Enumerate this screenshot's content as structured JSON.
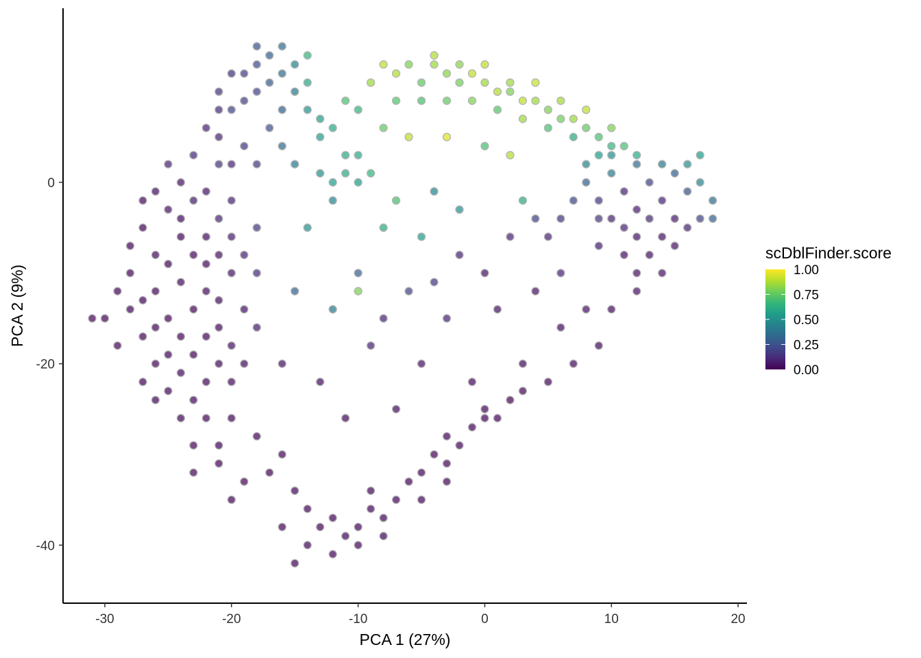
{
  "chart_data": {
    "type": "scatter",
    "xlabel": "PCA 1 (27%)",
    "ylabel": "PCA 2 (9%)",
    "xlim": [
      -33.3,
      20.7
    ],
    "ylim": [
      -46.4,
      19.2
    ],
    "xticks": [
      -30,
      -20,
      -10,
      0,
      10,
      20
    ],
    "yticks": [
      0,
      -20,
      -40
    ],
    "grid": false,
    "colormap": "viridis",
    "point_stroke": "#b3b3b3",
    "legend": {
      "title": "scDblFinder.score",
      "placement": "right",
      "range": [
        0,
        1
      ],
      "ticks": [
        "1.00",
        "0.75",
        "0.50",
        "0.25",
        "0.00"
      ],
      "tick_values": [
        1,
        0.75,
        0.5,
        0.25,
        0
      ]
    },
    "points": [
      [
        -27,
        -5,
        0.02
      ],
      [
        -26,
        -8,
        0.03
      ],
      [
        -25,
        -3,
        0.05
      ],
      [
        -24,
        -6,
        0.02
      ],
      [
        -23,
        -2,
        0.08
      ],
      [
        -22,
        -9,
        0.03
      ],
      [
        -21,
        -4,
        0.1
      ],
      [
        -26,
        -12,
        0.02
      ],
      [
        -25,
        -15,
        0.02
      ],
      [
        -24,
        -11,
        0.03
      ],
      [
        -23,
        -14,
        0.02
      ],
      [
        -22,
        -17,
        0.02
      ],
      [
        -21,
        -13,
        0.04
      ],
      [
        -27,
        -17,
        0.02
      ],
      [
        -26,
        -20,
        0.02
      ],
      [
        -25,
        -19,
        0.02
      ],
      [
        -24,
        -21,
        0.03
      ],
      [
        -23,
        -19,
        0.02
      ],
      [
        -22,
        -22,
        0.02
      ],
      [
        -21,
        -20,
        0.03
      ],
      [
        -28,
        -10,
        0.02
      ],
      [
        -28,
        -14,
        0.02
      ],
      [
        -29,
        -18,
        0.02
      ],
      [
        -27,
        -22,
        0.02
      ],
      [
        -25,
        -23,
        0.02
      ],
      [
        -23,
        -24,
        0.02
      ],
      [
        -20,
        -18,
        0.05
      ],
      [
        -20,
        -10,
        0.06
      ],
      [
        -20,
        -6,
        0.08
      ],
      [
        -22,
        -1,
        0.06
      ],
      [
        -24,
        0,
        0.05
      ],
      [
        -25,
        2,
        0.1
      ],
      [
        -23,
        3,
        0.12
      ],
      [
        -21,
        2,
        0.15
      ],
      [
        -26,
        -1,
        0.04
      ],
      [
        -24,
        -17,
        0.02
      ],
      [
        -22,
        -12,
        0.03
      ],
      [
        -23,
        -8,
        0.02
      ],
      [
        -25,
        -9,
        0.02
      ],
      [
        -27,
        -13,
        0.02
      ],
      [
        -26,
        -16,
        0.02
      ],
      [
        -21,
        -16,
        0.03
      ],
      [
        -20,
        -22,
        0.04
      ],
      [
        -19,
        -14,
        0.06
      ],
      [
        -19,
        -8,
        0.1
      ],
      [
        -28,
        -7,
        0.02
      ],
      [
        -29,
        -12,
        0.02
      ],
      [
        -24,
        -4,
        0.03
      ],
      [
        -22,
        -6,
        0.04
      ],
      [
        -20,
        -2,
        0.1
      ],
      [
        -21,
        -8,
        0.05
      ],
      [
        -27,
        -2,
        0.03
      ],
      [
        -30,
        -15,
        0.02
      ],
      [
        -31,
        -15,
        0.02
      ],
      [
        -19,
        -20,
        0.04
      ],
      [
        -18,
        -16,
        0.08
      ],
      [
        -18,
        -10,
        0.12
      ],
      [
        -18,
        -5,
        0.15
      ],
      [
        -22,
        -26,
        0.02
      ],
      [
        -24,
        -26,
        0.02
      ],
      [
        -26,
        -24,
        0.02
      ],
      [
        -20,
        -26,
        0.02
      ],
      [
        -21,
        -29,
        0.02
      ],
      [
        -23,
        -29,
        0.02
      ],
      [
        -22,
        6,
        0.1
      ],
      [
        -21,
        10,
        0.15
      ],
      [
        -20,
        8,
        0.2
      ],
      [
        -19,
        12,
        0.18
      ],
      [
        -18,
        15,
        0.25
      ],
      [
        -17,
        14,
        0.3
      ],
      [
        -16,
        12,
        0.35
      ],
      [
        -15,
        10,
        0.4
      ],
      [
        -14,
        8,
        0.5
      ],
      [
        -13,
        7,
        0.55
      ],
      [
        -18,
        10,
        0.2
      ],
      [
        -17,
        6,
        0.25
      ],
      [
        -19,
        4,
        0.15
      ],
      [
        -20,
        2,
        0.1
      ],
      [
        -16,
        8,
        0.3
      ],
      [
        -15,
        13,
        0.45
      ],
      [
        -17,
        11,
        0.28
      ],
      [
        -19,
        9,
        0.18
      ],
      [
        -21,
        5,
        0.1
      ],
      [
        -14,
        11,
        0.6
      ],
      [
        -16,
        4,
        0.35
      ],
      [
        -15,
        2,
        0.4
      ],
      [
        -18,
        2,
        0.15
      ],
      [
        -13,
        5,
        0.55
      ],
      [
        -12,
        6,
        0.6
      ],
      [
        -18,
        13,
        0.22
      ],
      [
        -20,
        12,
        0.14
      ],
      [
        -21,
        8,
        0.12
      ],
      [
        -16,
        15,
        0.35
      ],
      [
        -14,
        14,
        0.65
      ],
      [
        -13,
        1,
        0.5
      ],
      [
        -12,
        0,
        0.55
      ],
      [
        -11,
        1,
        0.6
      ],
      [
        -10,
        0,
        0.55
      ],
      [
        -12,
        -2,
        0.45
      ],
      [
        -11,
        3,
        0.6
      ],
      [
        -9,
        1,
        0.65
      ],
      [
        -10,
        3,
        0.6
      ],
      [
        -9,
        11,
        0.85
      ],
      [
        -8,
        13,
        0.9
      ],
      [
        -7,
        12,
        0.88
      ],
      [
        -6,
        13,
        0.8
      ],
      [
        -5,
        11,
        0.75
      ],
      [
        -4,
        13,
        0.85
      ],
      [
        -3,
        12,
        0.82
      ],
      [
        -2,
        11,
        0.78
      ],
      [
        -1,
        12,
        0.9
      ],
      [
        0,
        11,
        0.85
      ],
      [
        1,
        10,
        0.88
      ],
      [
        2,
        10,
        0.8
      ],
      [
        3,
        9,
        0.9
      ],
      [
        4,
        9,
        0.85
      ],
      [
        5,
        8,
        0.8
      ],
      [
        6,
        7,
        0.78
      ],
      [
        7,
        7,
        0.85
      ],
      [
        8,
        6,
        0.75
      ],
      [
        9,
        5,
        0.7
      ],
      [
        10,
        4,
        0.65
      ],
      [
        11,
        4,
        0.7
      ],
      [
        12,
        3,
        0.6
      ],
      [
        -5,
        9,
        0.7
      ],
      [
        -3,
        9,
        0.75
      ],
      [
        -1,
        9,
        0.8
      ],
      [
        1,
        8,
        0.72
      ],
      [
        3,
        7,
        0.85
      ],
      [
        5,
        6,
        0.7
      ],
      [
        7,
        5,
        0.6
      ],
      [
        9,
        3,
        0.55
      ],
      [
        -7,
        9,
        0.72
      ],
      [
        -4,
        14,
        0.88
      ],
      [
        -2,
        13,
        0.82
      ],
      [
        0,
        13,
        0.9
      ],
      [
        2,
        11,
        0.85
      ],
      [
        4,
        11,
        0.92
      ],
      [
        6,
        9,
        0.86
      ],
      [
        8,
        8,
        0.9
      ],
      [
        10,
        6,
        0.8
      ],
      [
        -8,
        6,
        0.75
      ],
      [
        -6,
        5,
        0.9
      ],
      [
        -3,
        5,
        0.95
      ],
      [
        0,
        4,
        0.7
      ],
      [
        2,
        3,
        0.88
      ],
      [
        -10,
        8,
        0.65
      ],
      [
        -11,
        9,
        0.7
      ],
      [
        8,
        0,
        0.3
      ],
      [
        9,
        -2,
        0.15
      ],
      [
        10,
        1,
        0.4
      ],
      [
        11,
        -1,
        0.1
      ],
      [
        12,
        -3,
        0.08
      ],
      [
        13,
        0,
        0.2
      ],
      [
        14,
        -2,
        0.1
      ],
      [
        15,
        -4,
        0.08
      ],
      [
        16,
        -1,
        0.25
      ],
      [
        17,
        0,
        0.45
      ],
      [
        18,
        -2,
        0.35
      ],
      [
        10,
        -4,
        0.1
      ],
      [
        12,
        -6,
        0.06
      ],
      [
        14,
        -6,
        0.05
      ],
      [
        16,
        -5,
        0.1
      ],
      [
        9,
        -7,
        0.08
      ],
      [
        11,
        -8,
        0.05
      ],
      [
        13,
        -8,
        0.05
      ],
      [
        15,
        -7,
        0.06
      ],
      [
        17,
        -4,
        0.2
      ],
      [
        8,
        2,
        0.45
      ],
      [
        10,
        3,
        0.5
      ],
      [
        12,
        2,
        0.35
      ],
      [
        14,
        2,
        0.4
      ],
      [
        16,
        2,
        0.5
      ],
      [
        17,
        3,
        0.55
      ],
      [
        15,
        1,
        0.3
      ],
      [
        13,
        -4,
        0.12
      ],
      [
        11,
        -5,
        0.1
      ],
      [
        9,
        -4,
        0.15
      ],
      [
        7,
        -2,
        0.2
      ],
      [
        6,
        -4,
        0.15
      ],
      [
        5,
        -6,
        0.1
      ],
      [
        18,
        -4,
        0.3
      ],
      [
        14,
        -10,
        0.05
      ],
      [
        12,
        -10,
        0.05
      ],
      [
        -8,
        -5,
        0.6
      ],
      [
        -5,
        -6,
        0.55
      ],
      [
        -2,
        -8,
        0.1
      ],
      [
        0,
        -10,
        0.05
      ],
      [
        2,
        -6,
        0.1
      ],
      [
        4,
        -4,
        0.2
      ],
      [
        -10,
        -10,
        0.3
      ],
      [
        -6,
        -12,
        0.2
      ],
      [
        -3,
        -15,
        0.1
      ],
      [
        1,
        -14,
        0.05
      ],
      [
        4,
        -12,
        0.05
      ],
      [
        6,
        -10,
        0.1
      ],
      [
        -12,
        -14,
        0.4
      ],
      [
        -9,
        -18,
        0.1
      ],
      [
        -5,
        -20,
        0.05
      ],
      [
        -1,
        -22,
        0.03
      ],
      [
        3,
        -20,
        0.03
      ],
      [
        6,
        -16,
        0.04
      ],
      [
        8,
        -14,
        0.05
      ],
      [
        -14,
        -5,
        0.5
      ],
      [
        -15,
        -12,
        0.3
      ],
      [
        -16,
        -20,
        0.05
      ],
      [
        -13,
        -22,
        0.04
      ],
      [
        -11,
        -26,
        0.03
      ],
      [
        -7,
        -25,
        0.03
      ],
      [
        -3,
        -28,
        0.02
      ],
      [
        0,
        -26,
        0.02
      ],
      [
        2,
        -24,
        0.02
      ],
      [
        5,
        -22,
        0.02
      ],
      [
        7,
        -20,
        0.03
      ],
      [
        9,
        -18,
        0.03
      ],
      [
        10,
        -14,
        0.04
      ],
      [
        12,
        -12,
        0.05
      ],
      [
        -7,
        -2,
        0.7
      ],
      [
        -4,
        -1,
        0.45
      ],
      [
        -2,
        -3,
        0.5
      ],
      [
        3,
        -2,
        0.6
      ],
      [
        -8,
        -15,
        0.1
      ],
      [
        -10,
        -12,
        0.8
      ],
      [
        -4,
        -11,
        0.15
      ],
      [
        -18,
        -28,
        0.02
      ],
      [
        -17,
        -32,
        0.02
      ],
      [
        -16,
        -30,
        0.02
      ],
      [
        -15,
        -34,
        0.02
      ],
      [
        -14,
        -36,
        0.02
      ],
      [
        -13,
        -38,
        0.02
      ],
      [
        -12,
        -37,
        0.02
      ],
      [
        -11,
        -39,
        0.02
      ],
      [
        -10,
        -38,
        0.02
      ],
      [
        -9,
        -36,
        0.02
      ],
      [
        -8,
        -37,
        0.02
      ],
      [
        -7,
        -35,
        0.02
      ],
      [
        -6,
        -33,
        0.02
      ],
      [
        -5,
        -32,
        0.02
      ],
      [
        -4,
        -30,
        0.02
      ],
      [
        -3,
        -31,
        0.02
      ],
      [
        -2,
        -29,
        0.02
      ],
      [
        -1,
        -27,
        0.02
      ],
      [
        0,
        -25,
        0.02
      ],
      [
        1,
        -26,
        0.02
      ],
      [
        3,
        -23,
        0.02
      ],
      [
        -16,
        -38,
        0.02
      ],
      [
        -14,
        -40,
        0.02
      ],
      [
        -12,
        -41,
        0.02
      ],
      [
        -10,
        -40,
        0.02
      ],
      [
        -8,
        -39,
        0.02
      ],
      [
        -19,
        -33,
        0.02
      ],
      [
        -20,
        -35,
        0.02
      ],
      [
        -15,
        -42,
        0.02
      ],
      [
        -9,
        -34,
        0.02
      ],
      [
        -5,
        -35,
        0.02
      ],
      [
        -3,
        -33,
        0.02
      ],
      [
        -21,
        -31,
        0.02
      ],
      [
        -23,
        -32,
        0.02
      ]
    ]
  }
}
